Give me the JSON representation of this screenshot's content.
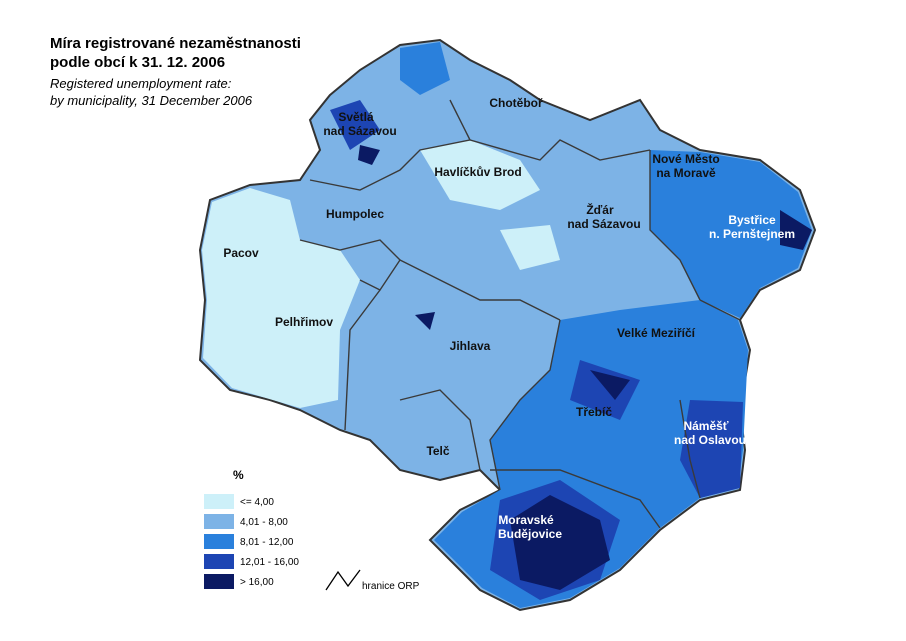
{
  "header": {
    "title": [
      "Míra registrované nezaměstnanosti",
      "podle obcí k 31. 12. 2006"
    ],
    "subtitle": [
      "Registered unemployment rate:",
      "by municipality, 31 December 2006"
    ]
  },
  "regions": [
    {
      "lines": [
        "Světlá",
        "nad Sázavou"
      ]
    },
    {
      "lines": [
        "Chotěboř"
      ]
    },
    {
      "lines": [
        "Havlíčkův Brod"
      ]
    },
    {
      "lines": [
        "Nové Město",
        "na Moravě"
      ]
    },
    {
      "lines": [
        "Bystřice",
        "n. Pernštejnem"
      ]
    },
    {
      "lines": [
        "Humpolec"
      ]
    },
    {
      "lines": [
        "Žďár",
        "nad Sázavou"
      ]
    },
    {
      "lines": [
        "Pacov"
      ]
    },
    {
      "lines": [
        "Pelhřimov"
      ]
    },
    {
      "lines": [
        "Jihlava"
      ]
    },
    {
      "lines": [
        "Velké Meziříčí"
      ]
    },
    {
      "lines": [
        "Třebíč"
      ]
    },
    {
      "lines": [
        "Náměšť",
        "nad Oslavou"
      ]
    },
    {
      "lines": [
        "Telč"
      ]
    },
    {
      "lines": [
        "Moravské",
        "Budějovice"
      ]
    }
  ],
  "legend": {
    "title": "%",
    "items": [
      {
        "label": "<=  4,00",
        "color": "#cdf0f9"
      },
      {
        "label": "4,01 - 8,00",
        "color": "#7db3e6"
      },
      {
        "label": "8,01 - 12,00",
        "color": "#2a80dc"
      },
      {
        "label": "12,01 - 16,00",
        "color": "#1d45b3"
      },
      {
        "label": "> 16,00",
        "color": "#0b1a63"
      }
    ],
    "border_label": "hranice ORP"
  }
}
